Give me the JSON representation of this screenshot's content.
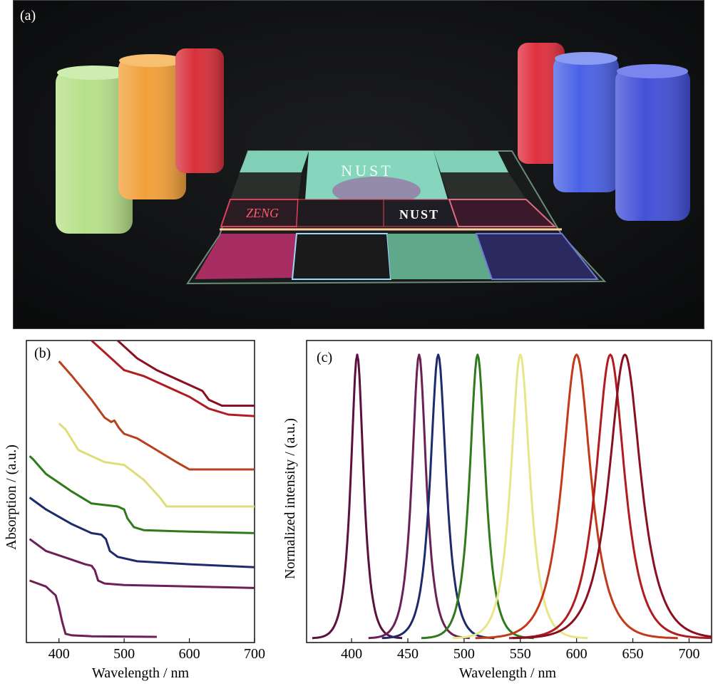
{
  "panel_a": {
    "label": "(a)",
    "tile_texts": [
      "NUST",
      "ZENG",
      "NUST"
    ],
    "vial_colors_left": [
      "#b7e08a",
      "#f2a03a",
      "#d8303a"
    ],
    "vial_colors_right": [
      "#e0303f",
      "#4a62e6",
      "#4450d8"
    ]
  },
  "chart_data": [
    {
      "type": "line",
      "label": "(b)",
      "xlabel": "Wavelength / nm",
      "ylabel": "Absorption / (a.u.)",
      "xlim": [
        350,
        700
      ],
      "ylim": [
        0,
        1
      ],
      "xticks": [
        400,
        500,
        600,
        700
      ],
      "yticks": [],
      "grid": false,
      "legend": "none",
      "series": [
        {
          "color": "#6b2056",
          "x": [
            355,
            380,
            395,
            400,
            405,
            410,
            420,
            450,
            500,
            550
          ],
          "y": [
            0.19,
            0.17,
            0.14,
            0.1,
            0.05,
            0.01,
            0.005,
            0.002,
            0.001,
            0.0
          ]
        },
        {
          "color": "#6b2056",
          "x": [
            355,
            380,
            420,
            440,
            450,
            455,
            460,
            470,
            500,
            600,
            700
          ],
          "y": [
            0.33,
            0.29,
            0.26,
            0.245,
            0.24,
            0.225,
            0.19,
            0.18,
            0.175,
            0.17,
            0.165
          ]
        },
        {
          "color": "#1d2a6b",
          "x": [
            355,
            380,
            420,
            450,
            465,
            472,
            478,
            490,
            520,
            600,
            700
          ],
          "y": [
            0.47,
            0.43,
            0.38,
            0.35,
            0.345,
            0.33,
            0.29,
            0.27,
            0.255,
            0.245,
            0.235
          ]
        },
        {
          "color": "#2f7a1a",
          "x": [
            355,
            360,
            380,
            420,
            450,
            490,
            500,
            505,
            515,
            530,
            600,
            700
          ],
          "y": [
            0.61,
            0.6,
            0.55,
            0.49,
            0.45,
            0.44,
            0.43,
            0.4,
            0.37,
            0.36,
            0.355,
            0.35
          ]
        },
        {
          "color": "#dede78",
          "x": [
            400,
            410,
            430,
            470,
            500,
            530,
            555,
            565,
            600,
            700
          ],
          "y": [
            0.72,
            0.7,
            0.63,
            0.59,
            0.58,
            0.53,
            0.47,
            0.44,
            0.44,
            0.44
          ]
        },
        {
          "color": "#b8401c",
          "x": [
            400,
            420,
            450,
            470,
            480,
            485,
            492,
            500,
            520,
            550,
            580,
            600,
            700
          ],
          "y": [
            0.93,
            0.88,
            0.8,
            0.74,
            0.725,
            0.73,
            0.705,
            0.685,
            0.67,
            0.63,
            0.59,
            0.565,
            0.565
          ]
        },
        {
          "color": "#b01c20",
          "x": [
            450,
            470,
            500,
            530,
            550,
            600,
            630,
            660,
            700
          ],
          "y": [
            1.0,
            0.96,
            0.9,
            0.88,
            0.86,
            0.81,
            0.77,
            0.75,
            0.745
          ]
        },
        {
          "color": "#8a1020",
          "x": [
            490,
            500,
            520,
            550,
            600,
            620,
            630,
            650,
            700
          ],
          "y": [
            1.0,
            0.98,
            0.94,
            0.9,
            0.85,
            0.83,
            0.8,
            0.78,
            0.78
          ]
        }
      ]
    },
    {
      "type": "line",
      "label": "(c)",
      "xlabel": "Wavelength / nm",
      "ylabel": "Normalized intensity / (a.u.)",
      "xlim": [
        360,
        720
      ],
      "ylim": [
        0,
        1.05
      ],
      "xticks": [
        400,
        450,
        500,
        550,
        600,
        650,
        700
      ],
      "yticks": [],
      "grid": false,
      "legend": "none",
      "series": [
        {
          "color": "#5c1040",
          "peak": 405,
          "width": 8
        },
        {
          "color": "#6b2056",
          "peak": 460,
          "width": 9
        },
        {
          "color": "#1d2a6b",
          "peak": 477,
          "width": 10
        },
        {
          "color": "#2f7a1a",
          "peak": 512,
          "width": 10
        },
        {
          "color": "#e6e68a",
          "peak": 550,
          "width": 12
        },
        {
          "color": "#c23a1a",
          "peak": 600,
          "width": 18
        },
        {
          "color": "#b01c20",
          "peak": 630,
          "width": 18
        },
        {
          "color": "#8a1020",
          "peak": 643,
          "width": 20
        }
      ]
    }
  ]
}
